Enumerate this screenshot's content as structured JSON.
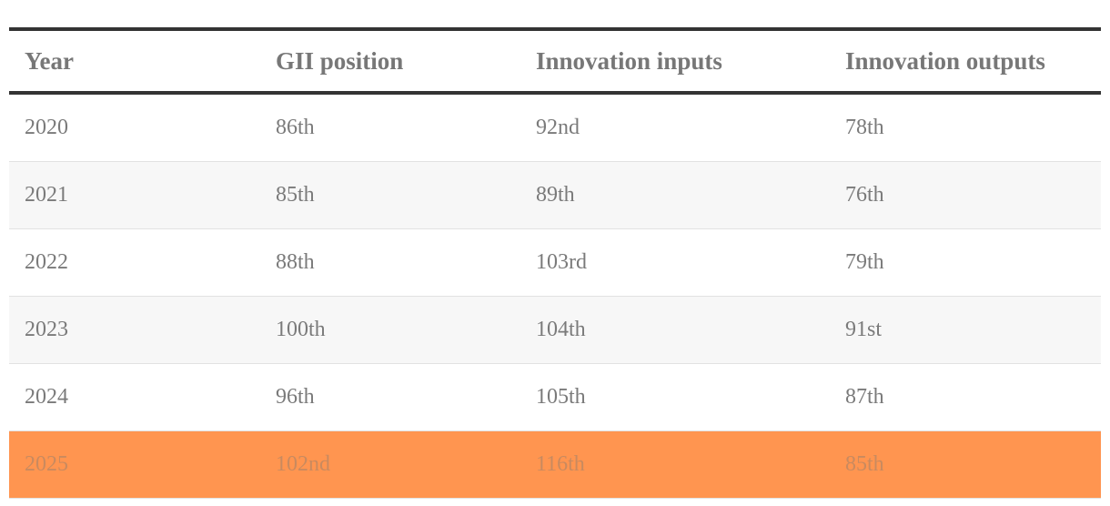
{
  "table": {
    "headers": [
      "Year",
      "GII position",
      "Innovation inputs",
      "Innovation outputs"
    ],
    "rows": [
      [
        "2020",
        "86th",
        "92nd",
        "78th"
      ],
      [
        "2021",
        "85th",
        "89th",
        "76th"
      ],
      [
        "2022",
        "88th",
        "103rd",
        "79th"
      ],
      [
        "2023",
        "100th",
        "104th",
        "91st"
      ],
      [
        "2024",
        "96th",
        "105th",
        "87th"
      ],
      [
        "2025",
        "102nd",
        "116th",
        "85th"
      ]
    ]
  }
}
